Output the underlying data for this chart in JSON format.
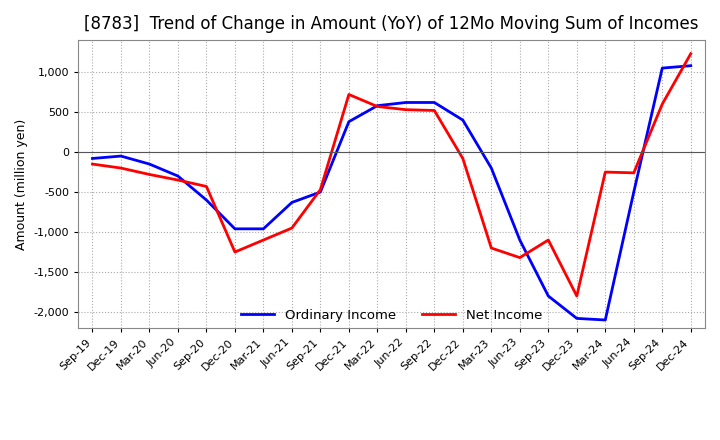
{
  "title": "[8783]  Trend of Change in Amount (YoY) of 12Mo Moving Sum of Incomes",
  "ylabel": "Amount (million yen)",
  "x_labels": [
    "Sep-19",
    "Dec-19",
    "Mar-20",
    "Jun-20",
    "Sep-20",
    "Dec-20",
    "Mar-21",
    "Jun-21",
    "Sep-21",
    "Dec-21",
    "Mar-22",
    "Jun-22",
    "Sep-22",
    "Dec-22",
    "Mar-23",
    "Jun-23",
    "Sep-23",
    "Dec-23",
    "Mar-24",
    "Jun-24",
    "Sep-24",
    "Dec-24"
  ],
  "ordinary_income": [
    -80,
    -50,
    -150,
    -300,
    -600,
    -960,
    -960,
    -630,
    -500,
    380,
    580,
    620,
    620,
    400,
    -200,
    -1100,
    -1800,
    -2080,
    -2100,
    -500,
    1050,
    1080
  ],
  "net_income": [
    -150,
    -200,
    -280,
    -350,
    -430,
    -1250,
    -1100,
    -950,
    -470,
    720,
    570,
    530,
    520,
    -80,
    -1200,
    -1320,
    -1100,
    -1800,
    -250,
    -260,
    600,
    1230
  ],
  "ordinary_color": "#0000ff",
  "net_color": "#ff0000",
  "ylim": [
    -2200,
    1400
  ],
  "yticks": [
    -2000,
    -1500,
    -1000,
    -500,
    0,
    500,
    1000
  ],
  "background_color": "#ffffff",
  "grid_color": "#aaaaaa",
  "title_fontsize": 12,
  "legend_labels": [
    "Ordinary Income",
    "Net Income"
  ]
}
